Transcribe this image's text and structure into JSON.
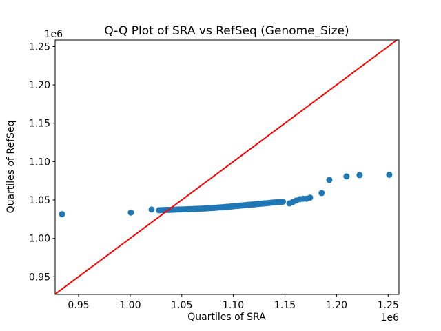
{
  "figure": {
    "background": "#ffffff",
    "frame_color": "#000000",
    "text_color": "#000000"
  },
  "chart_data": {
    "type": "scatter",
    "title": "Q-Q Plot of SRA vs RefSeq (Genome_Size)",
    "xlabel": "Quartiles of SRA",
    "ylabel": "Quartiles of RefSeq",
    "offset_text": "1e6",
    "value_scale": 1000000,
    "xlim": [
      0.9273,
      1.2605
    ],
    "ylim": [
      0.9269,
      1.2585
    ],
    "xticks": [
      0.95,
      1.0,
      1.05,
      1.1,
      1.15,
      1.2,
      1.25
    ],
    "yticks": [
      0.95,
      1.0,
      1.05,
      1.1,
      1.15,
      1.2,
      1.25
    ],
    "xtick_labels": [
      "0.95",
      "1.00",
      "1.05",
      "1.10",
      "1.15",
      "1.20",
      "1.25"
    ],
    "ytick_labels": [
      "0.95",
      "1.00",
      "1.05",
      "1.10",
      "1.15",
      "1.20",
      "1.25"
    ],
    "grid": false,
    "legend": false,
    "marker_color": "#1f77b4",
    "marker_radius": 4.5,
    "scatter_points": [
      [
        0.934,
        1.0315
      ],
      [
        1.0007,
        1.0336
      ],
      [
        1.0208,
        1.0375
      ],
      [
        1.028,
        1.0366
      ],
      [
        1.03,
        1.0368
      ],
      [
        1.032,
        1.0369
      ],
      [
        1.034,
        1.037
      ],
      [
        1.036,
        1.0371
      ],
      [
        1.038,
        1.0371
      ],
      [
        1.04,
        1.0372
      ],
      [
        1.042,
        1.0373
      ],
      [
        1.044,
        1.0374
      ],
      [
        1.046,
        1.0375
      ],
      [
        1.048,
        1.0376
      ],
      [
        1.05,
        1.0377
      ],
      [
        1.052,
        1.0378
      ],
      [
        1.054,
        1.0379
      ],
      [
        1.056,
        1.038
      ],
      [
        1.058,
        1.0381
      ],
      [
        1.06,
        1.0382
      ],
      [
        1.062,
        1.0383
      ],
      [
        1.064,
        1.0384
      ],
      [
        1.066,
        1.0385
      ],
      [
        1.068,
        1.0386
      ],
      [
        1.07,
        1.0388
      ],
      [
        1.072,
        1.0389
      ],
      [
        1.074,
        1.0391
      ],
      [
        1.076,
        1.0392
      ],
      [
        1.078,
        1.0394
      ],
      [
        1.08,
        1.0396
      ],
      [
        1.082,
        1.0398
      ],
      [
        1.084,
        1.04
      ],
      [
        1.086,
        1.0402
      ],
      [
        1.088,
        1.0404
      ],
      [
        1.09,
        1.0406
      ],
      [
        1.092,
        1.0409
      ],
      [
        1.094,
        1.0411
      ],
      [
        1.096,
        1.0413
      ],
      [
        1.098,
        1.0416
      ],
      [
        1.1,
        1.0418
      ],
      [
        1.102,
        1.0421
      ],
      [
        1.104,
        1.0423
      ],
      [
        1.106,
        1.0426
      ],
      [
        1.108,
        1.0428
      ],
      [
        1.11,
        1.0431
      ],
      [
        1.112,
        1.0433
      ],
      [
        1.114,
        1.0436
      ],
      [
        1.116,
        1.0438
      ],
      [
        1.118,
        1.0441
      ],
      [
        1.12,
        1.0443
      ],
      [
        1.122,
        1.0446
      ],
      [
        1.124,
        1.0448
      ],
      [
        1.126,
        1.0451
      ],
      [
        1.128,
        1.0453
      ],
      [
        1.13,
        1.0456
      ],
      [
        1.132,
        1.0458
      ],
      [
        1.134,
        1.0461
      ],
      [
        1.136,
        1.0463
      ],
      [
        1.138,
        1.0466
      ],
      [
        1.14,
        1.0468
      ],
      [
        1.142,
        1.0471
      ],
      [
        1.144,
        1.0473
      ],
      [
        1.146,
        1.0476
      ],
      [
        1.148,
        1.0478
      ],
      [
        1.1543,
        1.0455
      ],
      [
        1.1576,
        1.0474
      ],
      [
        1.1609,
        1.0492
      ],
      [
        1.1643,
        1.051
      ],
      [
        1.1676,
        1.0516
      ],
      [
        1.1709,
        1.0516
      ],
      [
        1.1743,
        1.0531
      ],
      [
        1.1856,
        1.0591
      ],
      [
        1.193,
        1.0762
      ],
      [
        1.2097,
        1.0807
      ],
      [
        1.2224,
        1.0825
      ],
      [
        1.2511,
        1.0829
      ]
    ],
    "identity_line": {
      "label": "y = x reference line",
      "points": [
        [
          0.9273,
          0.9273
        ],
        [
          1.2585,
          1.2585
        ]
      ],
      "color": "#ff0000",
      "linewidth": 2
    }
  }
}
